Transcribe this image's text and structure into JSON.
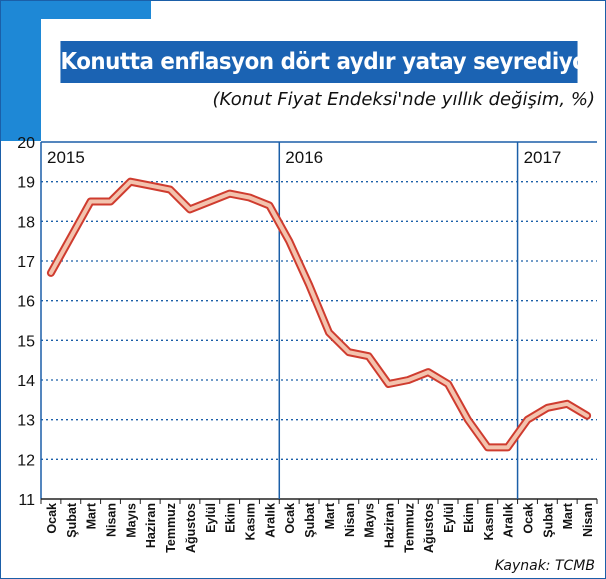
{
  "title": "Konutta enflasyon dört aydır yatay seyrediyor",
  "subtitle": "(Konut Fiyat Endeksi'nde yıllık değişim, %)",
  "source": "Kaynak: TCMB",
  "colors": {
    "accent_blue": "#1e88d6",
    "title_blue": "#1b63b3",
    "line_fill": "#f3c3ae",
    "line_outline": "#cf3c2f",
    "grid": "#1b5fa8"
  },
  "chart_data": {
    "type": "line",
    "title": "Konutta enflasyon dört aydır yatay seyrediyor",
    "subtitle": "(Konut Fiyat Endeksi'nde yıllık değişim, %)",
    "ylim": [
      11,
      20
    ],
    "yticks": [
      11,
      12,
      13,
      14,
      15,
      16,
      17,
      18,
      19,
      20
    ],
    "grid": "horizontal dotted",
    "year_labels": [
      {
        "label": "2015",
        "start_index": 0
      },
      {
        "label": "2016",
        "start_index": 12
      },
      {
        "label": "2017",
        "start_index": 24
      }
    ],
    "categories": [
      "Ocak",
      "Şubat",
      "Mart",
      "Nisan",
      "Mayıs",
      "Haziran",
      "Temmuz",
      "Ağustos",
      "Eylül",
      "Ekim",
      "Kasım",
      "Aralık",
      "Ocak",
      "Şubat",
      "Mart",
      "Nisan",
      "Mayıs",
      "Haziran",
      "Temmuz",
      "Ağustos",
      "Eylül",
      "Ekim",
      "Kasım",
      "Aralık",
      "Ocak",
      "Şubat",
      "Mart",
      "Nisan"
    ],
    "series": [
      {
        "values": [
          16.7,
          17.6,
          18.5,
          18.5,
          19.0,
          18.9,
          18.8,
          18.3,
          18.5,
          18.7,
          18.6,
          18.4,
          17.5,
          16.4,
          15.2,
          14.7,
          14.6,
          13.9,
          14.0,
          14.2,
          13.9,
          13.0,
          12.3,
          12.3,
          13.0,
          13.3,
          13.4,
          13.1
        ]
      }
    ]
  }
}
